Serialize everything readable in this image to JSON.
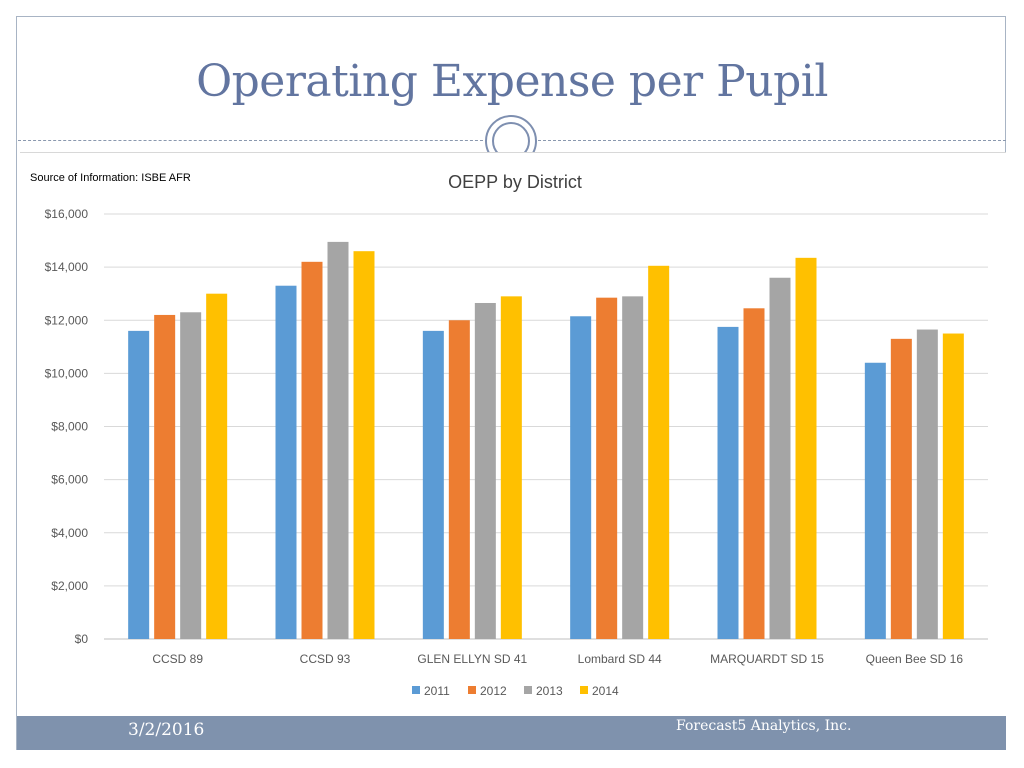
{
  "slide": {
    "title": "Operating Expense per Pupil",
    "source_note": "Source of Information: ISBE AFR",
    "footer_date": "3/2/2016",
    "footer_company": "Forecast5 Analytics, Inc."
  },
  "colors": {
    "title": "#6275a0",
    "footer": "#7f92ad",
    "series": [
      "#5b9bd5",
      "#ed7d31",
      "#a5a5a5",
      "#ffc000"
    ]
  },
  "chart_data": {
    "type": "bar",
    "title": "OEPP by District",
    "xlabel": "",
    "ylabel": "",
    "ylim": [
      0,
      16000
    ],
    "y_ticks": [
      0,
      2000,
      4000,
      6000,
      8000,
      10000,
      12000,
      14000,
      16000
    ],
    "y_tick_labels": [
      "$0",
      "$2,000",
      "$4,000",
      "$6,000",
      "$8,000",
      "$10,000",
      "$12,000",
      "$14,000",
      "$16,000"
    ],
    "grid": true,
    "legend_position": "bottom",
    "categories": [
      "CCSD 89",
      "CCSD 93",
      "GLEN ELLYN SD 41",
      "Lombard SD 44",
      "MARQUARDT SD 15",
      "Queen Bee SD 16"
    ],
    "series": [
      {
        "name": "2011",
        "values": [
          11600,
          13300,
          11600,
          12150,
          11750,
          10400
        ]
      },
      {
        "name": "2012",
        "values": [
          12200,
          14200,
          12000,
          12850,
          12450,
          11300
        ]
      },
      {
        "name": "2013",
        "values": [
          12300,
          14950,
          12650,
          12900,
          13600,
          11650
        ]
      },
      {
        "name": "2014",
        "values": [
          13000,
          14600,
          12900,
          14050,
          14350,
          11500
        ]
      }
    ]
  }
}
